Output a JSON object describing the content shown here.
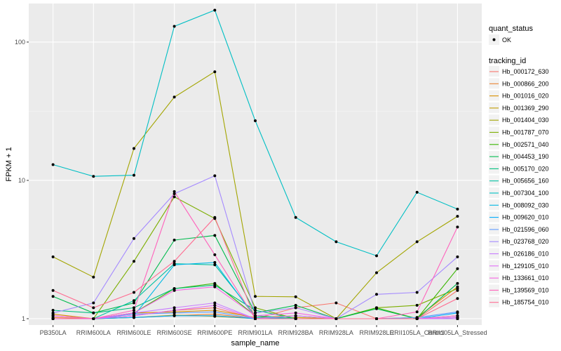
{
  "chart_data": {
    "type": "line",
    "xlabel": "sample_name",
    "ylabel": "FPKM + 1",
    "y_scale": "log10",
    "ylim": [
      0.9,
      190
    ],
    "y_ticks": [
      1,
      10,
      100
    ],
    "y_tick_labels": [
      "1",
      "10",
      "100"
    ],
    "grid": true,
    "legend_placement": "right",
    "categories": [
      "PB350LA",
      "RRIM600LA",
      "RRIM600LE",
      "RRIM600SE",
      "RRIM600PE",
      "RRIM901LA",
      "RRIM928BA",
      "RRIM928LA",
      "RRIM928LE",
      "RRII105LA_Control",
      "RRII105LA_Stressed"
    ],
    "shape_legend": {
      "title": "quant_status",
      "items": [
        "OK"
      ]
    },
    "color_legend_title": "tracking_id",
    "series": [
      {
        "name": "Hb_000172_630",
        "color": "#F8766D",
        "values": [
          1.05,
          1.0,
          1.05,
          1.15,
          1.2,
          1.0,
          1.2,
          1.3,
          1.0,
          1.0,
          1.6
        ]
      },
      {
        "name": "Hb_000866_200",
        "color": "#EA8331",
        "values": [
          1.02,
          1.0,
          1.02,
          1.05,
          1.08,
          1.0,
          1.0,
          1.0,
          1.0,
          1.0,
          1.02
        ]
      },
      {
        "name": "Hb_001016_020",
        "color": "#D89000",
        "values": [
          1.08,
          1.0,
          1.1,
          1.12,
          1.15,
          1.02,
          1.05,
          1.0,
          1.0,
          1.02,
          1.7
        ]
      },
      {
        "name": "Hb_001369_290",
        "color": "#C09B00",
        "values": [
          1.0,
          1.0,
          1.02,
          1.06,
          1.04,
          1.0,
          1.02,
          1.0,
          1.0,
          1.0,
          1.05
        ]
      },
      {
        "name": "Hb_001404_030",
        "color": "#A3A500",
        "values": [
          2.8,
          2.0,
          17.0,
          40.0,
          61.0,
          1.45,
          1.44,
          1.0,
          2.15,
          3.6,
          5.5
        ]
      },
      {
        "name": "Hb_001787_070",
        "color": "#7CAE00",
        "values": [
          1.0,
          1.0,
          2.6,
          7.6,
          5.3,
          1.2,
          1.0,
          1.0,
          1.2,
          1.25,
          1.65
        ]
      },
      {
        "name": "Hb_002571_040",
        "color": "#39B600",
        "values": [
          1.0,
          1.0,
          1.1,
          1.65,
          1.8,
          1.05,
          1.0,
          1.0,
          1.2,
          1.0,
          2.3
        ]
      },
      {
        "name": "Hb_004453_190",
        "color": "#00BB4E",
        "values": [
          1.45,
          1.1,
          1.3,
          3.7,
          4.0,
          1.1,
          1.25,
          1.0,
          1.18,
          1.0,
          1.8
        ]
      },
      {
        "name": "Hb_005170_020",
        "color": "#00BF7D",
        "values": [
          1.15,
          1.1,
          1.2,
          1.65,
          1.75,
          1.15,
          1.0,
          1.0,
          1.0,
          1.0,
          1.0
        ]
      },
      {
        "name": "Hb_005656_160",
        "color": "#00C1A3",
        "values": [
          1.0,
          1.0,
          1.35,
          2.5,
          2.45,
          1.05,
          1.0,
          1.0,
          1.0,
          1.0,
          1.0
        ]
      },
      {
        "name": "Hb_007304_100",
        "color": "#00BFC4",
        "values": [
          13.0,
          10.7,
          10.9,
          130.0,
          170.0,
          27.0,
          5.4,
          3.6,
          2.85,
          8.2,
          6.2
        ]
      },
      {
        "name": "Hb_008092_030",
        "color": "#00B8E5",
        "values": [
          1.0,
          1.0,
          1.05,
          2.45,
          2.55,
          1.02,
          1.0,
          1.0,
          1.0,
          1.0,
          1.02
        ]
      },
      {
        "name": "Hb_009620_010",
        "color": "#00ABFD",
        "values": [
          1.0,
          1.0,
          1.02,
          1.05,
          1.05,
          1.0,
          1.0,
          1.0,
          1.0,
          1.0,
          1.1
        ]
      },
      {
        "name": "Hb_021596_060",
        "color": "#619CFF",
        "values": [
          1.0,
          1.0,
          1.08,
          1.1,
          1.12,
          1.0,
          1.0,
          1.0,
          1.0,
          1.02,
          1.12
        ]
      },
      {
        "name": "Hb_023768_020",
        "color": "#A58AFF",
        "values": [
          1.1,
          1.3,
          3.8,
          8.0,
          10.8,
          1.1,
          1.2,
          1.0,
          1.5,
          1.55,
          2.8
        ]
      },
      {
        "name": "Hb_026186_010",
        "color": "#C77CFF",
        "values": [
          1.0,
          1.0,
          1.1,
          1.2,
          1.3,
          1.0,
          1.05,
          1.0,
          1.0,
          1.0,
          1.0
        ]
      },
      {
        "name": "Hb_129105_010",
        "color": "#E26EF7",
        "values": [
          1.0,
          1.0,
          1.05,
          1.15,
          1.25,
          1.0,
          1.0,
          1.0,
          1.0,
          1.0,
          1.02
        ]
      },
      {
        "name": "Hb_133661_010",
        "color": "#F564E3",
        "values": [
          1.05,
          1.0,
          1.1,
          1.6,
          1.7,
          1.05,
          1.1,
          1.0,
          1.0,
          1.0,
          1.05
        ]
      },
      {
        "name": "Hb_139569_010",
        "color": "#FF62BC",
        "values": [
          1.0,
          1.0,
          1.15,
          8.3,
          2.9,
          1.0,
          1.0,
          1.0,
          1.0,
          1.12,
          4.6
        ]
      },
      {
        "name": "Hb_185754_010",
        "color": "#FF6C91",
        "values": [
          1.6,
          1.2,
          1.55,
          2.6,
          5.4,
          1.0,
          1.0,
          1.0,
          1.0,
          1.0,
          1.4
        ]
      }
    ]
  }
}
